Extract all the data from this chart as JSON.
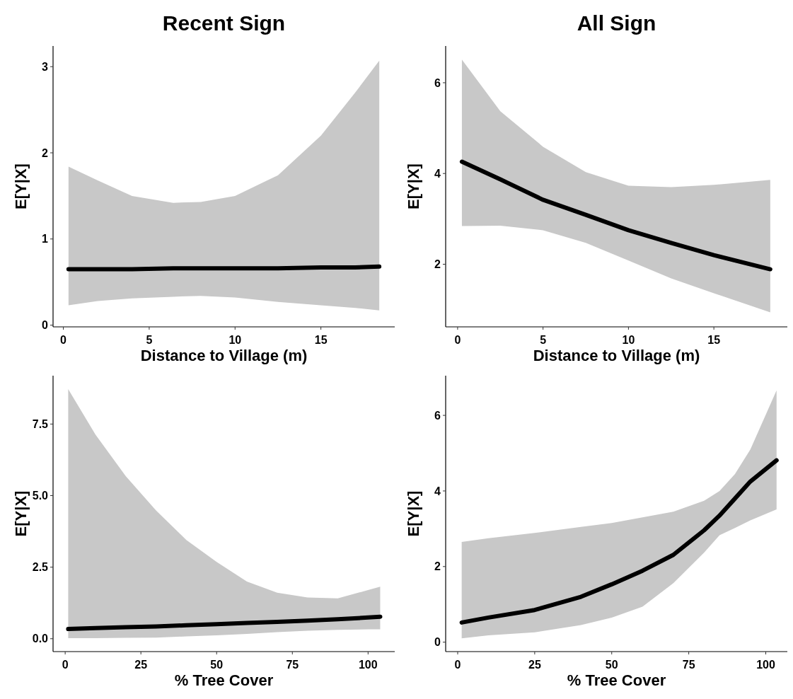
{
  "chart_data": [
    {
      "type": "line",
      "title": "Recent Sign",
      "xlabel": "Distance to Village (m)",
      "ylabel": "E[Y|X]",
      "xlim": [
        -0.6,
        19.3
      ],
      "xticks": [
        0,
        5,
        10,
        15
      ],
      "ylim": [
        -0.02,
        3.24
      ],
      "yticks": [
        0,
        1,
        2,
        3
      ],
      "grid": false,
      "series": [
        {
          "color": "#000000",
          "x": [
            0.3,
            2,
            4,
            6.4,
            8,
            10,
            12.5,
            15,
            17,
            18.4
          ],
          "values": [
            0.65,
            0.65,
            0.65,
            0.66,
            0.66,
            0.66,
            0.66,
            0.67,
            0.67,
            0.68
          ],
          "lower": [
            0.23,
            0.28,
            0.31,
            0.33,
            0.34,
            0.32,
            0.27,
            0.23,
            0.2,
            0.17
          ],
          "upper": [
            1.84,
            1.68,
            1.5,
            1.42,
            1.43,
            1.5,
            1.74,
            2.2,
            2.7,
            3.07
          ]
        }
      ]
    },
    {
      "type": "line",
      "title": "All Sign",
      "xlabel": "Distance to Village (m)",
      "ylabel": "E[Y|X]",
      "xlim": [
        -0.7,
        19.3
      ],
      "xticks": [
        0,
        5,
        10,
        15
      ],
      "ylim": [
        0.62,
        6.81
      ],
      "yticks": [
        2,
        4,
        6
      ],
      "grid": false,
      "series": [
        {
          "color": "#000000",
          "x": [
            0.25,
            2.5,
            5,
            7.5,
            10,
            12.5,
            15,
            18.3
          ],
          "values": [
            4.26,
            3.87,
            3.42,
            3.09,
            2.75,
            2.47,
            2.2,
            1.89
          ],
          "lower": [
            2.84,
            2.85,
            2.75,
            2.47,
            2.08,
            1.69,
            1.36,
            0.94
          ],
          "upper": [
            6.51,
            5.37,
            4.59,
            4.03,
            3.73,
            3.7,
            3.75,
            3.86
          ]
        }
      ]
    },
    {
      "type": "line",
      "xlabel": "% Tree Cover",
      "ylabel": "E[Y|X]",
      "xlim": [
        -4,
        108.8
      ],
      "xticks": [
        0,
        25,
        50,
        75,
        100
      ],
      "ylim": [
        -0.45,
        9.19
      ],
      "yticks": [
        {
          "value": 0,
          "label": "0.0"
        },
        2.5,
        {
          "value": 5,
          "label": "5.0"
        },
        7.5
      ],
      "grid": false,
      "series": [
        {
          "color": "#000000",
          "x": [
            1,
            10,
            20,
            30,
            40,
            50,
            60,
            70,
            80,
            90,
            100,
            104
          ],
          "values": [
            0.34,
            0.37,
            0.4,
            0.43,
            0.47,
            0.51,
            0.55,
            0.59,
            0.63,
            0.68,
            0.74,
            0.77
          ],
          "lower": [
            0.02,
            0.02,
            0.03,
            0.04,
            0.08,
            0.12,
            0.17,
            0.23,
            0.28,
            0.31,
            0.33,
            0.33
          ],
          "upper": [
            8.72,
            7.13,
            5.68,
            4.48,
            3.45,
            2.68,
            2.0,
            1.61,
            1.44,
            1.41,
            1.7,
            1.82
          ]
        }
      ]
    },
    {
      "type": "line",
      "xlabel": "% Tree Cover",
      "ylabel": "E[Y|X]",
      "xlim": [
        -3.9,
        107
      ],
      "xticks": [
        0,
        25,
        50,
        75,
        100
      ],
      "ylim": [
        -0.25,
        7.05
      ],
      "yticks": [
        0,
        2,
        4,
        6
      ],
      "grid": false,
      "series": [
        {
          "color": "#000000",
          "x": [
            1.3,
            10,
            25,
            40,
            50,
            60,
            70,
            80,
            85,
            90,
            95,
            103.5
          ],
          "values": [
            0.52,
            0.65,
            0.85,
            1.2,
            1.53,
            1.89,
            2.31,
            2.96,
            3.35,
            3.8,
            4.25,
            4.81
          ],
          "lower": [
            0.1,
            0.18,
            0.26,
            0.45,
            0.65,
            0.94,
            1.56,
            2.37,
            2.83,
            3.02,
            3.22,
            3.51
          ],
          "upper": [
            2.65,
            2.75,
            2.89,
            3.05,
            3.15,
            3.3,
            3.45,
            3.74,
            4.0,
            4.45,
            5.1,
            6.66
          ]
        }
      ]
    }
  ]
}
